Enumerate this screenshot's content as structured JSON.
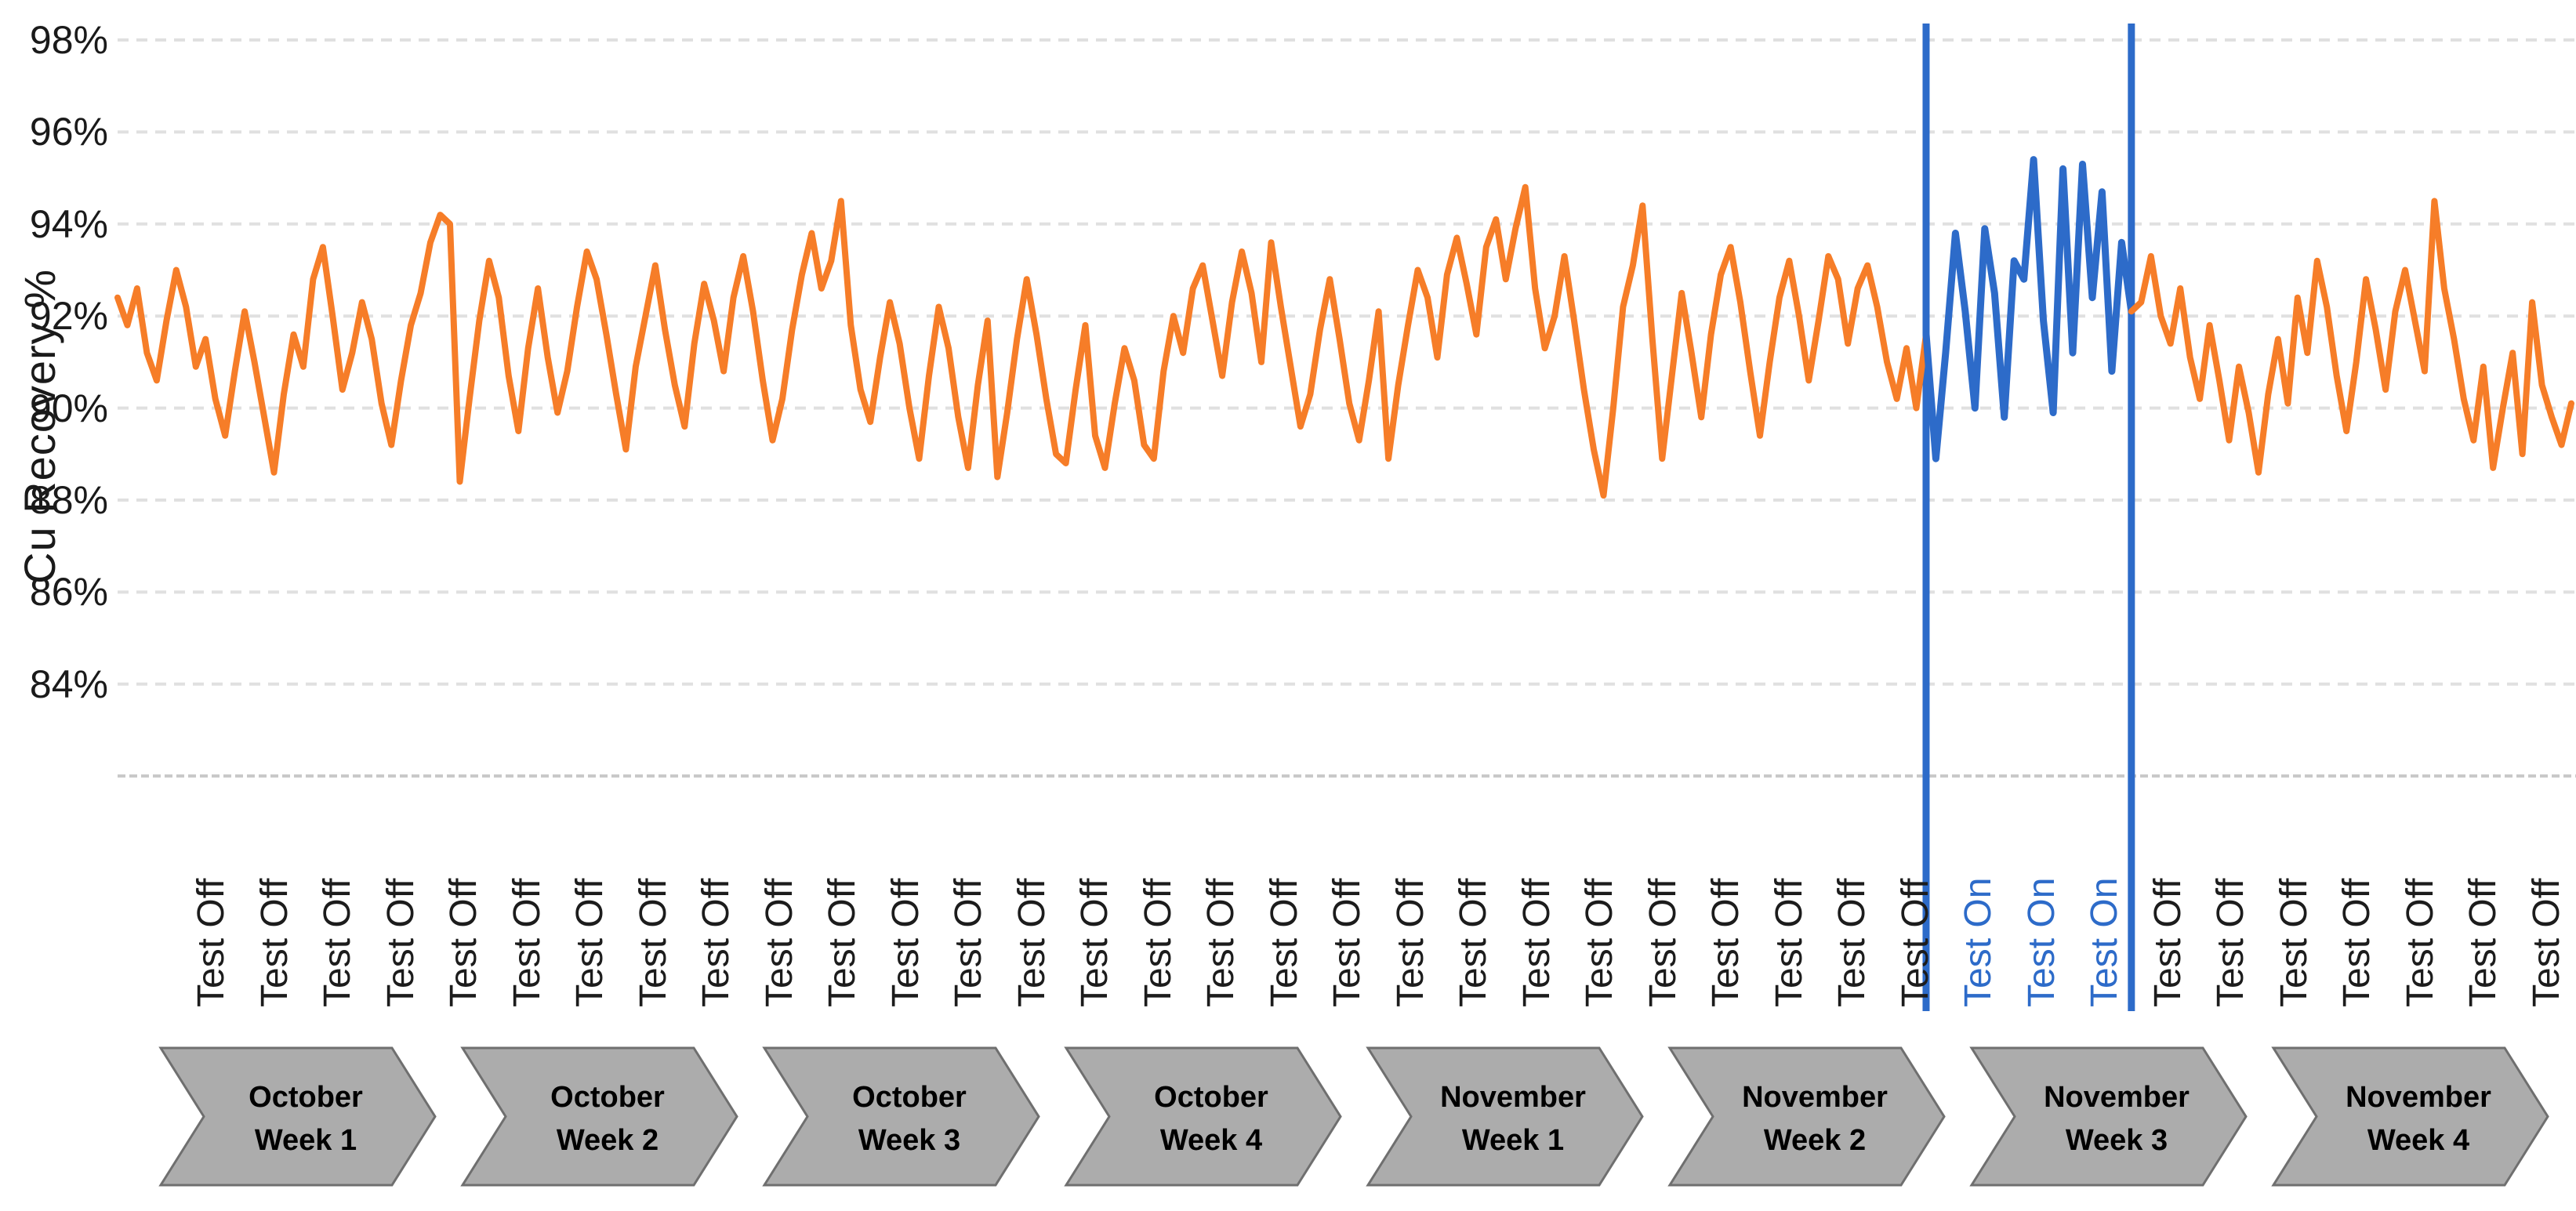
{
  "page": {
    "background": "#FFFFFF"
  },
  "chart": {
    "y_axis": {
      "title": "Cu Recovery %",
      "tick_labels": [
        "98%",
        "96%",
        "94%",
        "92%",
        "90%",
        "88%",
        "86%",
        "84%"
      ]
    },
    "x_axis": {
      "label_groups": [
        {
          "label": "Test Off",
          "count": 28,
          "color": "#1c1c1c"
        },
        {
          "label": "Test On",
          "count": 3,
          "color": "#2d6bc9"
        },
        {
          "label": "Test Off",
          "count": 7,
          "color": "#1c1c1c"
        }
      ]
    },
    "colors": {
      "baseline_line": "#f67d28",
      "test_on_line": "#2d6bc9",
      "marker_line": "#2d6bc9",
      "gridline": "#e0e0e0",
      "axis_line": "#c9c9c9",
      "chevron_fill": "#acacac",
      "chevron_border": "#6f6f6f",
      "chevron_text": "#000000"
    }
  },
  "chart_data": {
    "type": "line",
    "title": "",
    "xlabel": "",
    "ylabel": "Cu Recovery %",
    "ylim": [
      82,
      98
    ],
    "y_ticks_percent": [
      98,
      96,
      94,
      92,
      90,
      88,
      86,
      84
    ],
    "grid": "horizontal dashed",
    "legend": "none",
    "series": [
      {
        "name": "Cu Recovery % (Test Off)",
        "color": "#f67d28"
      },
      {
        "name": "Cu Recovery % (Test On)",
        "color": "#2d6bc9"
      }
    ],
    "values_percent": [
      92.4,
      91.8,
      92.6,
      91.2,
      90.6,
      91.9,
      93.0,
      92.2,
      90.9,
      91.5,
      90.2,
      89.4,
      90.8,
      92.1,
      91.0,
      89.8,
      88.6,
      90.3,
      91.6,
      90.9,
      92.8,
      93.5,
      92.0,
      90.4,
      91.2,
      92.3,
      91.5,
      90.1,
      89.2,
      90.6,
      91.8,
      92.5,
      93.6,
      94.2,
      94.0,
      88.4,
      90.2,
      91.9,
      93.2,
      92.4,
      90.7,
      89.5,
      91.3,
      92.6,
      91.1,
      89.9,
      90.8,
      92.2,
      93.4,
      92.8,
      91.6,
      90.3,
      89.1,
      90.9,
      92.0,
      93.1,
      91.7,
      90.5,
      89.6,
      91.4,
      92.7,
      91.9,
      90.8,
      92.4,
      93.3,
      92.1,
      90.6,
      89.3,
      90.2,
      91.7,
      92.9,
      93.8,
      92.6,
      93.2,
      94.5,
      91.8,
      90.4,
      89.7,
      91.1,
      92.3,
      91.4,
      90.0,
      88.9,
      90.7,
      92.2,
      91.3,
      89.8,
      88.7,
      90.5,
      91.9,
      88.5,
      89.9,
      91.5,
      92.8,
      91.6,
      90.2,
      89.0,
      88.8,
      90.4,
      91.8,
      89.4,
      88.7,
      90.1,
      91.3,
      90.6,
      89.2,
      88.9,
      90.8,
      92.0,
      91.2,
      92.6,
      93.1,
      91.9,
      90.7,
      92.3,
      93.4,
      92.5,
      91.0,
      93.6,
      92.2,
      90.9,
      89.6,
      90.3,
      91.7,
      92.8,
      91.5,
      90.1,
      89.3,
      90.6,
      92.1,
      88.9,
      90.5,
      91.8,
      93.0,
      92.4,
      91.1,
      92.9,
      93.7,
      92.7,
      91.6,
      93.5,
      94.1,
      92.8,
      93.9,
      94.8,
      92.6,
      91.3,
      92.0,
      93.3,
      91.9,
      90.4,
      89.1,
      88.1,
      90.0,
      92.2,
      93.1,
      94.4,
      91.5,
      88.9,
      90.7,
      92.5,
      91.2,
      89.8,
      91.6,
      92.9,
      93.5,
      92.3,
      90.8,
      89.4,
      91.0,
      92.4,
      93.2,
      92.0,
      90.6,
      91.9,
      93.3,
      92.8,
      91.4,
      92.6,
      93.1,
      92.2,
      91.0,
      90.2,
      91.3,
      90.0,
      91.6,
      88.9,
      91.2,
      93.8,
      92.1,
      90.0,
      93.9,
      92.5,
      89.8,
      93.2,
      92.8,
      95.4,
      91.9,
      89.9,
      95.2,
      91.2,
      95.3,
      92.4,
      94.7,
      90.8,
      93.6,
      92.1,
      92.3,
      93.3,
      92.0,
      91.4,
      92.6,
      91.1,
      90.2,
      91.8,
      90.6,
      89.3,
      90.9,
      89.9,
      88.6,
      90.3,
      91.5,
      90.1,
      92.4,
      91.2,
      93.2,
      92.2,
      90.7,
      89.5,
      91.0,
      92.8,
      91.7,
      90.4,
      92.1,
      93.0,
      91.9,
      90.8,
      94.5,
      92.6,
      91.5,
      90.2,
      89.3,
      90.9,
      88.7,
      90.0,
      91.2,
      89.0,
      92.3,
      90.5,
      89.8,
      89.2,
      90.1
    ],
    "test_on_index_start": 185,
    "test_on_index_end": 206,
    "annotations": {
      "markers": "Two vertical blue lines bound the Test On period (November Week 3); line segment between them is drawn blue, all other data orange."
    }
  },
  "timeline": {
    "chevrons": [
      {
        "line1": "October",
        "line2": "Week 1"
      },
      {
        "line1": "October",
        "line2": "Week 2"
      },
      {
        "line1": "October",
        "line2": "Week 3"
      },
      {
        "line1": "October",
        "line2": "Week 4"
      },
      {
        "line1": "November",
        "line2": "Week 1"
      },
      {
        "line1": "November",
        "line2": "Week 2"
      },
      {
        "line1": "November",
        "line2": "Week 3"
      },
      {
        "line1": "November",
        "line2": "Week 4"
      }
    ]
  }
}
